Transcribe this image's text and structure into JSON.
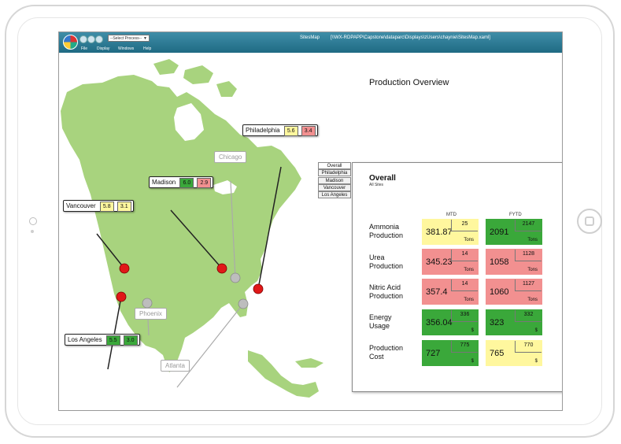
{
  "app": {
    "title": "SitesMap",
    "path": "[\\\\WX-RDPAPP\\Capstone\\dataparc\\Displays\\zUsers\\chaynie\\SitesMap.xaml]",
    "process_select": "--Select Process--",
    "menu": [
      "File",
      "Display",
      "Windows",
      "Help"
    ]
  },
  "page": {
    "title": "Production Overview"
  },
  "site_buttons": [
    "Overall",
    "Philadelphia",
    "Madison",
    "Vancouver",
    "Los Angeles"
  ],
  "map": {
    "callouts": [
      {
        "name": "Philadelphia",
        "v1": "5.6",
        "v2": "3.4",
        "c1": "#fff79e",
        "c2": "#f29090"
      },
      {
        "name": "Madison",
        "v1": "6.0",
        "v2": "2.9",
        "c1": "#3aa83a",
        "c2": "#f29090"
      },
      {
        "name": "Vancouver",
        "v1": "5.8",
        "v2": "3.1",
        "c1": "#fff79e",
        "c2": "#fff79e"
      },
      {
        "name": "Los Angeles",
        "v1": "5.5",
        "v2": "3.0",
        "c1": "#3aa83a",
        "c2": "#3aa83a"
      }
    ],
    "inactive": [
      "Chicago",
      "Phoenix",
      "Atlanta"
    ],
    "status_colors": {
      "alarm": "#e01818",
      "inactive": "#bdbdbd",
      "land": "#a8d37e"
    }
  },
  "panel": {
    "title": "Overall",
    "subtitle": "All Sites",
    "columns": [
      "MTD",
      "FYTD"
    ],
    "rows": [
      {
        "label": [
          "Ammonia",
          "Production"
        ],
        "mtd": {
          "value": "381.87",
          "target": "25",
          "unit": "Tons",
          "color": "yellow"
        },
        "fytd": {
          "value": "2091",
          "target": "2147",
          "unit": "Tons",
          "color": "green"
        }
      },
      {
        "label": [
          "Urea",
          "Production"
        ],
        "mtd": {
          "value": "345.23",
          "target": "14",
          "unit": "Tons",
          "color": "red"
        },
        "fytd": {
          "value": "1058",
          "target": "1128",
          "unit": "Tons",
          "color": "red"
        }
      },
      {
        "label": [
          "Nitric Acid",
          "Production"
        ],
        "mtd": {
          "value": "357.4",
          "target": "14",
          "unit": "Tons",
          "color": "red"
        },
        "fytd": {
          "value": "1060",
          "target": "1127",
          "unit": "Tons",
          "color": "red"
        }
      },
      {
        "label": [
          "Energy",
          "Usage"
        ],
        "mtd": {
          "value": "356.04",
          "target": "336",
          "unit": "$",
          "color": "green"
        },
        "fytd": {
          "value": "323",
          "target": "332",
          "unit": "$",
          "color": "green"
        }
      },
      {
        "label": [
          "Production",
          "Cost"
        ],
        "mtd": {
          "value": "727",
          "target": "775",
          "unit": "$",
          "color": "green"
        },
        "fytd": {
          "value": "765",
          "target": "770",
          "unit": "$",
          "color": "yellow"
        }
      }
    ]
  }
}
